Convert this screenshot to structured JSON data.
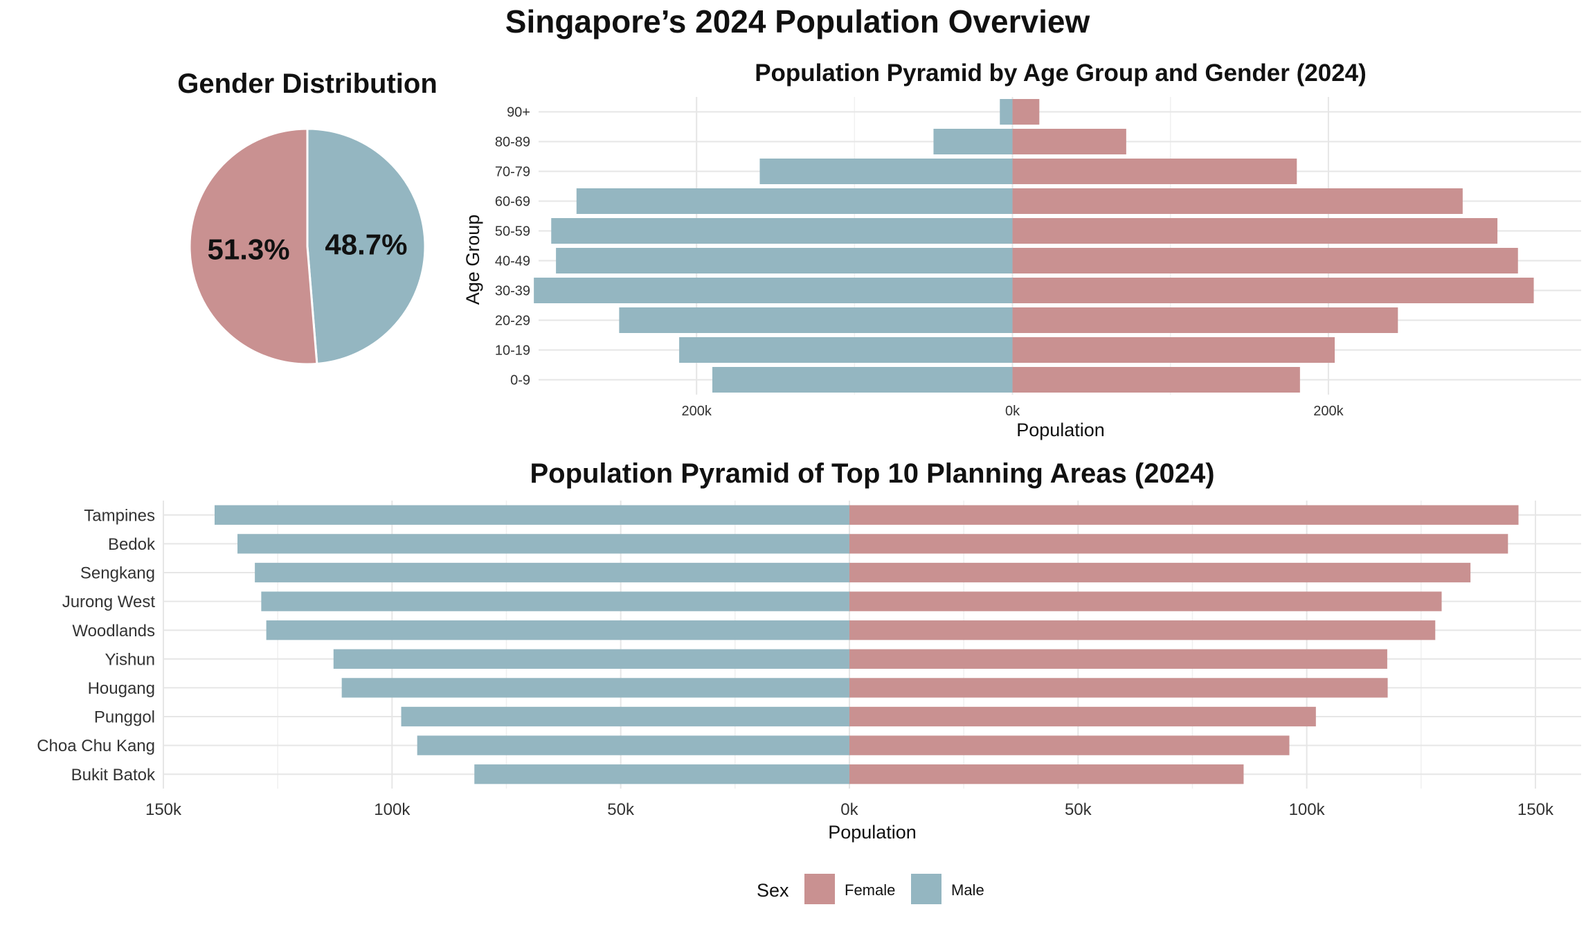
{
  "figure": {
    "title": "Singapore’s 2024 Population Overview"
  },
  "colors": {
    "female": "#c99191",
    "male": "#94b6c1",
    "grid": "#e6e6e6",
    "text": "#111111",
    "tick": "#333333"
  },
  "legend": {
    "title": "Sex",
    "items": [
      "Female",
      "Male"
    ]
  },
  "chart_data": [
    {
      "id": "gender",
      "type": "pie",
      "title": "Gender Distribution",
      "labels": [
        "Female",
        "Male"
      ],
      "values": [
        51.3,
        48.7
      ],
      "value_labels": [
        "51.3%",
        "48.7%"
      ]
    },
    {
      "id": "age",
      "type": "bar",
      "orientation": "horizontal-diverging",
      "title": "Population Pyramid by Age Group and Gender (2024)",
      "xlabel": "Population",
      "ylabel": "Age Group",
      "categories": [
        "0-9",
        "10-19",
        "20-29",
        "30-39",
        "40-49",
        "50-59",
        "60-69",
        "70-79",
        "80-89",
        "90+"
      ],
      "series": [
        {
          "name": "Male",
          "values": [
            190000,
            211000,
            249000,
            303000,
            289000,
            292000,
            276000,
            160000,
            50000,
            8000
          ]
        },
        {
          "name": "Female",
          "values": [
            182000,
            204000,
            244000,
            330000,
            320000,
            307000,
            285000,
            180000,
            72000,
            17000
          ]
        }
      ],
      "xlim": [
        -300000,
        360000
      ],
      "xticks": [
        {
          "value": -200000,
          "label": "200k"
        },
        {
          "value": 0,
          "label": "0k"
        },
        {
          "value": 200000,
          "label": "200k"
        }
      ],
      "grid": true
    },
    {
      "id": "areas",
      "type": "bar",
      "orientation": "horizontal-diverging",
      "title": "Population Pyramid of Top 10 Planning Areas (2024)",
      "xlabel": "Population",
      "categories": [
        "Bukit Batok",
        "Choa Chu Kang",
        "Punggol",
        "Hougang",
        "Yishun",
        "Woodlands",
        "Jurong West",
        "Sengkang",
        "Bedok",
        "Tampines"
      ],
      "series": [
        {
          "name": "Male",
          "values": [
            82000,
            94500,
            98000,
            111000,
            112800,
            127500,
            128600,
            130000,
            133800,
            138800
          ]
        },
        {
          "name": "Female",
          "values": [
            86200,
            96200,
            102000,
            117700,
            117600,
            128100,
            129500,
            135800,
            144000,
            146300
          ]
        }
      ],
      "xlim": [
        -150000,
        160000
      ],
      "xticks": [
        {
          "value": -150000,
          "label": "150k"
        },
        {
          "value": -100000,
          "label": "100k"
        },
        {
          "value": -50000,
          "label": "50k"
        },
        {
          "value": 0,
          "label": "0k"
        },
        {
          "value": 50000,
          "label": "50k"
        },
        {
          "value": 100000,
          "label": "100k"
        },
        {
          "value": 150000,
          "label": "150k"
        }
      ],
      "grid": true
    }
  ]
}
